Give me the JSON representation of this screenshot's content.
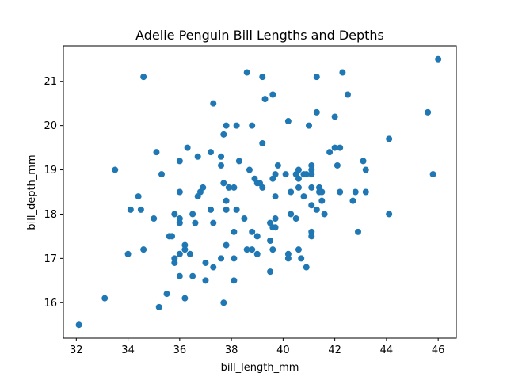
{
  "chart_data": {
    "type": "scatter",
    "title": "Adelie Penguin Bill Lengths and Depths",
    "xlabel": "bill_length_mm",
    "ylabel": "bill_depth_mm",
    "xlim": [
      31.5,
      46.7
    ],
    "ylim": [
      15.2,
      21.8
    ],
    "x_ticks": [
      32,
      34,
      36,
      38,
      40,
      42,
      44,
      46
    ],
    "y_ticks": [
      16,
      17,
      18,
      19,
      20,
      21
    ],
    "grid": false,
    "marker_color": "#1f77b4",
    "points": [
      [
        32.1,
        15.5
      ],
      [
        33.1,
        16.1
      ],
      [
        33.5,
        19.0
      ],
      [
        34.0,
        17.1
      ],
      [
        34.1,
        18.1
      ],
      [
        34.4,
        18.4
      ],
      [
        34.5,
        18.1
      ],
      [
        34.6,
        21.1
      ],
      [
        34.6,
        17.2
      ],
      [
        35.0,
        17.9
      ],
      [
        35.1,
        19.4
      ],
      [
        35.2,
        15.9
      ],
      [
        35.3,
        18.9
      ],
      [
        35.5,
        16.2
      ],
      [
        35.6,
        17.5
      ],
      [
        35.7,
        17.5
      ],
      [
        35.8,
        18.0
      ],
      [
        35.8,
        17.0
      ],
      [
        35.8,
        16.9
      ],
      [
        36.0,
        19.2
      ],
      [
        36.0,
        18.5
      ],
      [
        36.0,
        17.9
      ],
      [
        36.0,
        17.8
      ],
      [
        36.0,
        17.1
      ],
      [
        36.0,
        16.6
      ],
      [
        36.2,
        17.3
      ],
      [
        36.2,
        17.2
      ],
      [
        36.2,
        16.1
      ],
      [
        36.3,
        19.5
      ],
      [
        36.4,
        17.1
      ],
      [
        36.5,
        18.0
      ],
      [
        36.5,
        16.6
      ],
      [
        36.6,
        17.8
      ],
      [
        36.7,
        18.4
      ],
      [
        36.7,
        19.3
      ],
      [
        36.8,
        18.5
      ],
      [
        36.9,
        18.6
      ],
      [
        37.0,
        16.9
      ],
      [
        37.0,
        16.5
      ],
      [
        37.2,
        19.4
      ],
      [
        37.2,
        18.1
      ],
      [
        37.3,
        20.5
      ],
      [
        37.3,
        17.8
      ],
      [
        37.3,
        16.8
      ],
      [
        37.6,
        19.1
      ],
      [
        37.6,
        19.3
      ],
      [
        37.6,
        17.0
      ],
      [
        37.7,
        18.7
      ],
      [
        37.7,
        16.0
      ],
      [
        37.7,
        19.8
      ],
      [
        37.8,
        20.0
      ],
      [
        37.8,
        18.3
      ],
      [
        37.8,
        18.1
      ],
      [
        37.8,
        17.3
      ],
      [
        37.9,
        18.6
      ],
      [
        38.1,
        18.6
      ],
      [
        38.1,
        17.0
      ],
      [
        38.1,
        16.5
      ],
      [
        38.1,
        17.6
      ],
      [
        38.2,
        18.1
      ],
      [
        38.2,
        20.0
      ],
      [
        38.3,
        19.2
      ],
      [
        38.5,
        17.9
      ],
      [
        38.6,
        21.2
      ],
      [
        38.6,
        17.2
      ],
      [
        38.7,
        19.0
      ],
      [
        38.8,
        17.6
      ],
      [
        38.8,
        17.2
      ],
      [
        38.8,
        20.0
      ],
      [
        38.9,
        18.8
      ],
      [
        39.0,
        18.7
      ],
      [
        39.0,
        17.1
      ],
      [
        39.0,
        17.5
      ],
      [
        39.1,
        18.7
      ],
      [
        39.2,
        21.1
      ],
      [
        39.2,
        18.6
      ],
      [
        39.2,
        19.6
      ],
      [
        39.3,
        20.6
      ],
      [
        39.5,
        17.8
      ],
      [
        39.5,
        16.7
      ],
      [
        39.5,
        17.4
      ],
      [
        39.6,
        18.8
      ],
      [
        39.6,
        17.7
      ],
      [
        39.6,
        17.2
      ],
      [
        39.6,
        20.7
      ],
      [
        39.7,
        18.4
      ],
      [
        39.7,
        17.9
      ],
      [
        39.7,
        18.9
      ],
      [
        39.7,
        17.7
      ],
      [
        39.8,
        19.1
      ],
      [
        40.1,
        18.9
      ],
      [
        40.2,
        20.1
      ],
      [
        40.2,
        17.0
      ],
      [
        40.2,
        17.1
      ],
      [
        40.3,
        18.0
      ],
      [
        40.3,
        18.5
      ],
      [
        40.5,
        18.9
      ],
      [
        40.5,
        17.9
      ],
      [
        40.6,
        18.8
      ],
      [
        40.6,
        18.6
      ],
      [
        40.6,
        19.0
      ],
      [
        40.6,
        17.2
      ],
      [
        40.7,
        17.0
      ],
      [
        40.8,
        18.4
      ],
      [
        40.8,
        18.9
      ],
      [
        40.9,
        18.9
      ],
      [
        40.9,
        16.8
      ],
      [
        41.0,
        20.0
      ],
      [
        41.1,
        19.1
      ],
      [
        41.1,
        19.0
      ],
      [
        41.1,
        18.9
      ],
      [
        41.1,
        18.6
      ],
      [
        41.1,
        18.2
      ],
      [
        41.1,
        17.6
      ],
      [
        41.1,
        17.5
      ],
      [
        41.3,
        20.3
      ],
      [
        41.3,
        21.1
      ],
      [
        41.3,
        18.1
      ],
      [
        41.4,
        18.6
      ],
      [
        41.4,
        18.5
      ],
      [
        41.5,
        18.3
      ],
      [
        41.5,
        18.5
      ],
      [
        41.6,
        18.0
      ],
      [
        41.8,
        19.4
      ],
      [
        42.0,
        20.2
      ],
      [
        42.0,
        19.5
      ],
      [
        42.1,
        19.1
      ],
      [
        42.2,
        18.5
      ],
      [
        42.2,
        19.5
      ],
      [
        42.3,
        21.2
      ],
      [
        42.5,
        20.7
      ],
      [
        42.7,
        18.3
      ],
      [
        42.8,
        18.5
      ],
      [
        42.9,
        17.6
      ],
      [
        43.1,
        19.2
      ],
      [
        43.2,
        18.5
      ],
      [
        43.2,
        19.0
      ],
      [
        44.1,
        19.7
      ],
      [
        44.1,
        18.0
      ],
      [
        45.6,
        20.3
      ],
      [
        45.8,
        18.9
      ],
      [
        46.0,
        21.5
      ]
    ]
  }
}
